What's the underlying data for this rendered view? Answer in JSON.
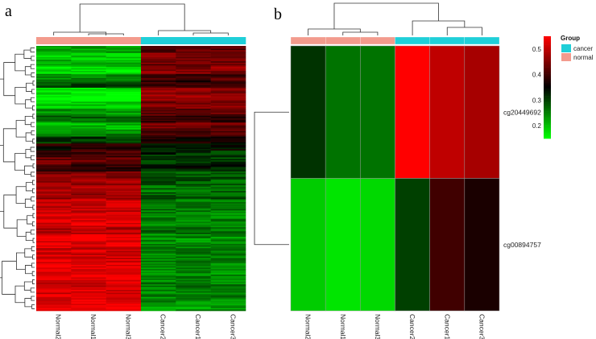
{
  "panels": {
    "a": "a",
    "b": "b"
  },
  "group_legend": {
    "title": "Group",
    "entries": [
      {
        "label": "cancer",
        "color": "#1fcfd8"
      },
      {
        "label": "normal",
        "color": "#f39b8d"
      }
    ]
  },
  "colorbar": {
    "ticks": [
      "0.5",
      "0.4",
      "0.3",
      "0.2"
    ],
    "tick_values": [
      0.5,
      0.4,
      0.3,
      0.2
    ],
    "min": 0.15,
    "max": 0.55
  },
  "colors": {
    "low": "#00ff00",
    "mid": "#000000",
    "high": "#ff0000",
    "cancer": "#1fcfd8",
    "normal": "#f39b8d"
  },
  "chart_data": [
    {
      "type": "heatmap",
      "panel": "a",
      "columns": [
        "Normal2",
        "Normal1",
        "Normal3",
        "Cancer2",
        "Cancer1",
        "Cancer3"
      ],
      "groups": [
        "normal",
        "normal",
        "normal",
        "cancer",
        "cancer",
        "cancer"
      ],
      "row_profile": [
        -0.6,
        -0.8,
        -0.7,
        -0.9,
        -0.5,
        -0.3,
        -0.9,
        -1.0,
        -0.8,
        -0.6,
        -0.4,
        -0.7,
        -0.5,
        -0.2,
        0.1,
        0.3,
        0.4,
        0.2,
        0.5,
        0.6,
        0.7,
        0.6,
        0.8,
        0.75,
        0.9,
        0.85,
        0.7,
        0.95,
        0.9,
        0.8,
        0.85,
        0.9,
        0.95,
        0.9,
        0.8,
        0.85,
        0.9,
        1.0
      ]
    },
    {
      "type": "heatmap",
      "panel": "b",
      "columns": [
        "Normal2",
        "Normal1",
        "Normal3",
        "Cancer2",
        "Cancer1",
        "Cancer3"
      ],
      "groups": [
        "normal",
        "normal",
        "normal",
        "cancer",
        "cancer",
        "cancer"
      ],
      "rows": [
        "cg20449692",
        "cg00894757"
      ],
      "values": [
        [
          0.31,
          0.26,
          0.26,
          0.55,
          0.5,
          0.48
        ],
        [
          0.19,
          0.17,
          0.18,
          0.3,
          0.4,
          0.37
        ]
      ]
    }
  ]
}
